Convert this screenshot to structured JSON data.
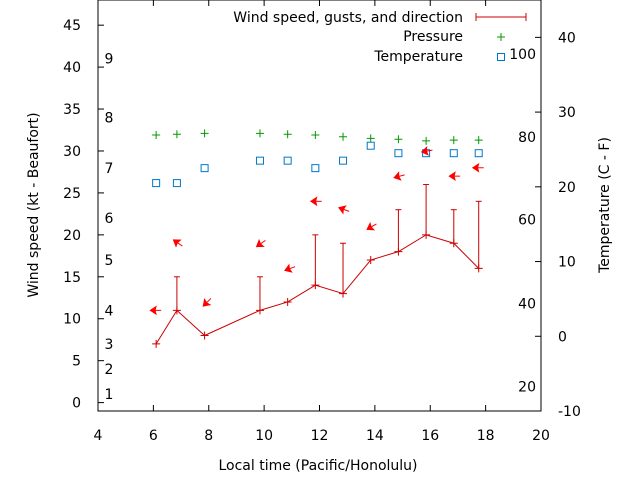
{
  "chart_data": {
    "type": "scatter",
    "xlabel": "Local time (Pacific/Honolulu)",
    "ylabel": "Wind speed (kt - Beaufort)",
    "y2label": "Temperature (C - F)",
    "xlim": [
      4,
      20
    ],
    "ylim": [
      -1,
      48
    ],
    "y2lim": [
      -10,
      45
    ],
    "x_ticks": [
      "4",
      "6",
      "8",
      "10",
      "12",
      "14",
      "16",
      "18",
      "20"
    ],
    "y_ticks": [
      "0",
      "5",
      "10",
      "15",
      "20",
      "25",
      "30",
      "35",
      "40",
      "45"
    ],
    "y2_ticks": [
      "-10",
      "0",
      "10",
      "20",
      "30",
      "40"
    ],
    "beaufort_labels": [
      {
        "text": "1",
        "wind": 1
      },
      {
        "text": "2",
        "wind": 4
      },
      {
        "text": "3",
        "wind": 7
      },
      {
        "text": "4",
        "wind": 11
      },
      {
        "text": "5",
        "wind": 17
      },
      {
        "text": "6",
        "wind": 22
      },
      {
        "text": "7",
        "wind": 28
      },
      {
        "text": "8",
        "wind": 34
      },
      {
        "text": "9",
        "wind": 41
      }
    ],
    "fahrenheit_labels": [
      {
        "text": "20",
        "temp": -6.7
      },
      {
        "text": "40",
        "temp": 4.4
      },
      {
        "text": "60",
        "temp": 15.6
      },
      {
        "text": "80",
        "temp": 26.7
      },
      {
        "text": "100",
        "temp": 37.8
      }
    ],
    "legend": {
      "placement": "top-right",
      "entries": [
        "Wind speed, gusts, and direction",
        "Pressure",
        "Temperature"
      ]
    },
    "colors": {
      "wind": "#cc0000",
      "pressure": "#009900",
      "temperature": "#0077cc",
      "direction": "#ff0000"
    },
    "series": [
      {
        "name": "Wind speed, gusts, and direction",
        "x": [
          6.1,
          6.85,
          7.85,
          9.85,
          10.85,
          11.85,
          12.85,
          13.85,
          14.85,
          15.85,
          16.85,
          17.75
        ],
        "values": [
          7,
          11,
          8,
          11,
          12,
          14,
          13,
          17,
          18,
          20,
          19,
          16
        ],
        "gusts": [
          7,
          15,
          8,
          15,
          12,
          20,
          19,
          17,
          23,
          26,
          23,
          24
        ]
      },
      {
        "name": "Pressure",
        "x": [
          6.1,
          6.85,
          7.85,
          9.85,
          10.85,
          11.85,
          12.85,
          13.85,
          14.85,
          15.85,
          16.85,
          17.75
        ],
        "values": [
          31.9,
          32.0,
          32.1,
          32.1,
          32.0,
          31.9,
          31.7,
          31.5,
          31.4,
          31.2,
          31.3,
          31.3
        ]
      },
      {
        "name": "Temperature",
        "x": [
          6.1,
          6.85,
          7.85,
          9.85,
          10.85,
          11.85,
          12.85,
          13.85,
          14.85,
          15.85,
          16.85,
          17.75
        ],
        "values": [
          20.5,
          20.5,
          22.5,
          23.5,
          23.5,
          22.5,
          23.5,
          25.5,
          24.5,
          24.5,
          24.5,
          24.5
        ],
        "axis": "y2"
      }
    ],
    "wind_direction_arrows": [
      {
        "x": 6.1,
        "y": 11,
        "angle_deg": 180
      },
      {
        "x": 6.9,
        "y": 19,
        "angle_deg": 215
      },
      {
        "x": 7.95,
        "y": 12,
        "angle_deg": 135
      },
      {
        "x": 9.9,
        "y": 19,
        "angle_deg": 145
      },
      {
        "x": 10.95,
        "y": 16,
        "angle_deg": 160
      },
      {
        "x": 11.9,
        "y": 24,
        "angle_deg": 180
      },
      {
        "x": 12.9,
        "y": 23,
        "angle_deg": 200
      },
      {
        "x": 13.9,
        "y": 21,
        "angle_deg": 150
      },
      {
        "x": 14.9,
        "y": 27,
        "angle_deg": 165
      },
      {
        "x": 15.9,
        "y": 30,
        "angle_deg": 170
      },
      {
        "x": 16.9,
        "y": 27,
        "angle_deg": 180
      },
      {
        "x": 17.75,
        "y": 28,
        "angle_deg": 180
      }
    ]
  }
}
